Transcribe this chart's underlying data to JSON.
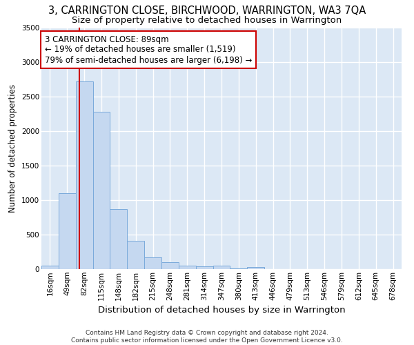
{
  "title": "3, CARRINGTON CLOSE, BIRCHWOOD, WARRINGTON, WA3 7QA",
  "subtitle": "Size of property relative to detached houses in Warrington",
  "xlabel": "Distribution of detached houses by size in Warrington",
  "ylabel": "Number of detached properties",
  "footer_line1": "Contains HM Land Registry data © Crown copyright and database right 2024.",
  "footer_line2": "Contains public sector information licensed under the Open Government Licence v3.0.",
  "bar_labels": [
    "16sqm",
    "49sqm",
    "82sqm",
    "115sqm",
    "148sqm",
    "182sqm",
    "215sqm",
    "248sqm",
    "281sqm",
    "314sqm",
    "347sqm",
    "380sqm",
    "413sqm",
    "446sqm",
    "479sqm",
    "513sqm",
    "546sqm",
    "579sqm",
    "612sqm",
    "645sqm",
    "678sqm"
  ],
  "bar_values": [
    55,
    1100,
    2720,
    2280,
    870,
    415,
    175,
    100,
    55,
    40,
    55,
    10,
    30,
    2,
    1,
    0,
    0,
    0,
    0,
    0,
    0
  ],
  "bar_color": "#c5d8f0",
  "bar_edgecolor": "#7aaadb",
  "red_line_color": "#cc0000",
  "annotation_text": "3 CARRINGTON CLOSE: 89sqm\n← 19% of detached houses are smaller (1,519)\n79% of semi-detached houses are larger (6,198) →",
  "annotation_box_color": "#ffffff",
  "annotation_box_edgecolor": "#cc0000",
  "ylim": [
    0,
    3500
  ],
  "yticks": [
    0,
    500,
    1000,
    1500,
    2000,
    2500,
    3000,
    3500
  ],
  "fig_bg_color": "#ffffff",
  "plot_bg_color": "#dce8f5",
  "grid_color": "#ffffff",
  "title_fontsize": 10.5,
  "subtitle_fontsize": 9.5,
  "xlabel_fontsize": 9.5,
  "ylabel_fontsize": 8.5,
  "tick_fontsize": 7.5,
  "annotation_fontsize": 8.5,
  "footer_fontsize": 6.5
}
